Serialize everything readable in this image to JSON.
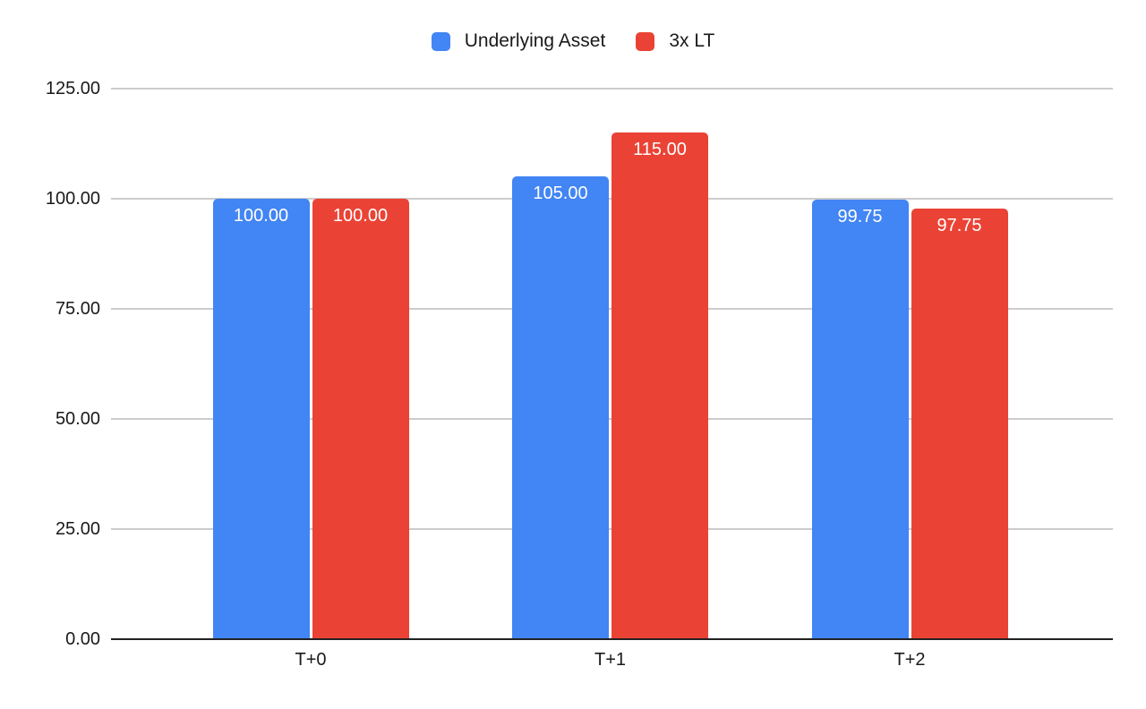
{
  "canvas": {
    "background": "#ffffff"
  },
  "chart_data": {
    "type": "bar",
    "title": "",
    "xlabel": "",
    "ylabel": "",
    "categories": [
      "T+0",
      "T+1",
      "T+2"
    ],
    "series": [
      {
        "name": "Underlying Asset",
        "color": "#4285f4",
        "values": [
          100.0,
          105.0,
          99.75
        ],
        "value_labels": [
          "100.00",
          "105.00",
          "99.75"
        ]
      },
      {
        "name": "3x LT",
        "color": "#ea4335",
        "values": [
          100.0,
          115.0,
          97.75
        ],
        "value_labels": [
          "100.00",
          "115.00",
          "97.75"
        ]
      }
    ],
    "ylim": [
      0,
      125
    ],
    "yticks": [
      {
        "label": "0.00",
        "value": 0
      },
      {
        "label": "25.00",
        "value": 25
      },
      {
        "label": "50.00",
        "value": 50
      },
      {
        "label": "75.00",
        "value": 75
      },
      {
        "label": "100.00",
        "value": 100
      },
      {
        "label": "125.00",
        "value": 125
      }
    ],
    "grid": true,
    "legend_position": "top-center",
    "colors": {
      "gridline": "#cccccc",
      "axis_line": "#222222",
      "bar_label_text": "#ffffff",
      "axis_text": "#1a1a1a"
    }
  }
}
